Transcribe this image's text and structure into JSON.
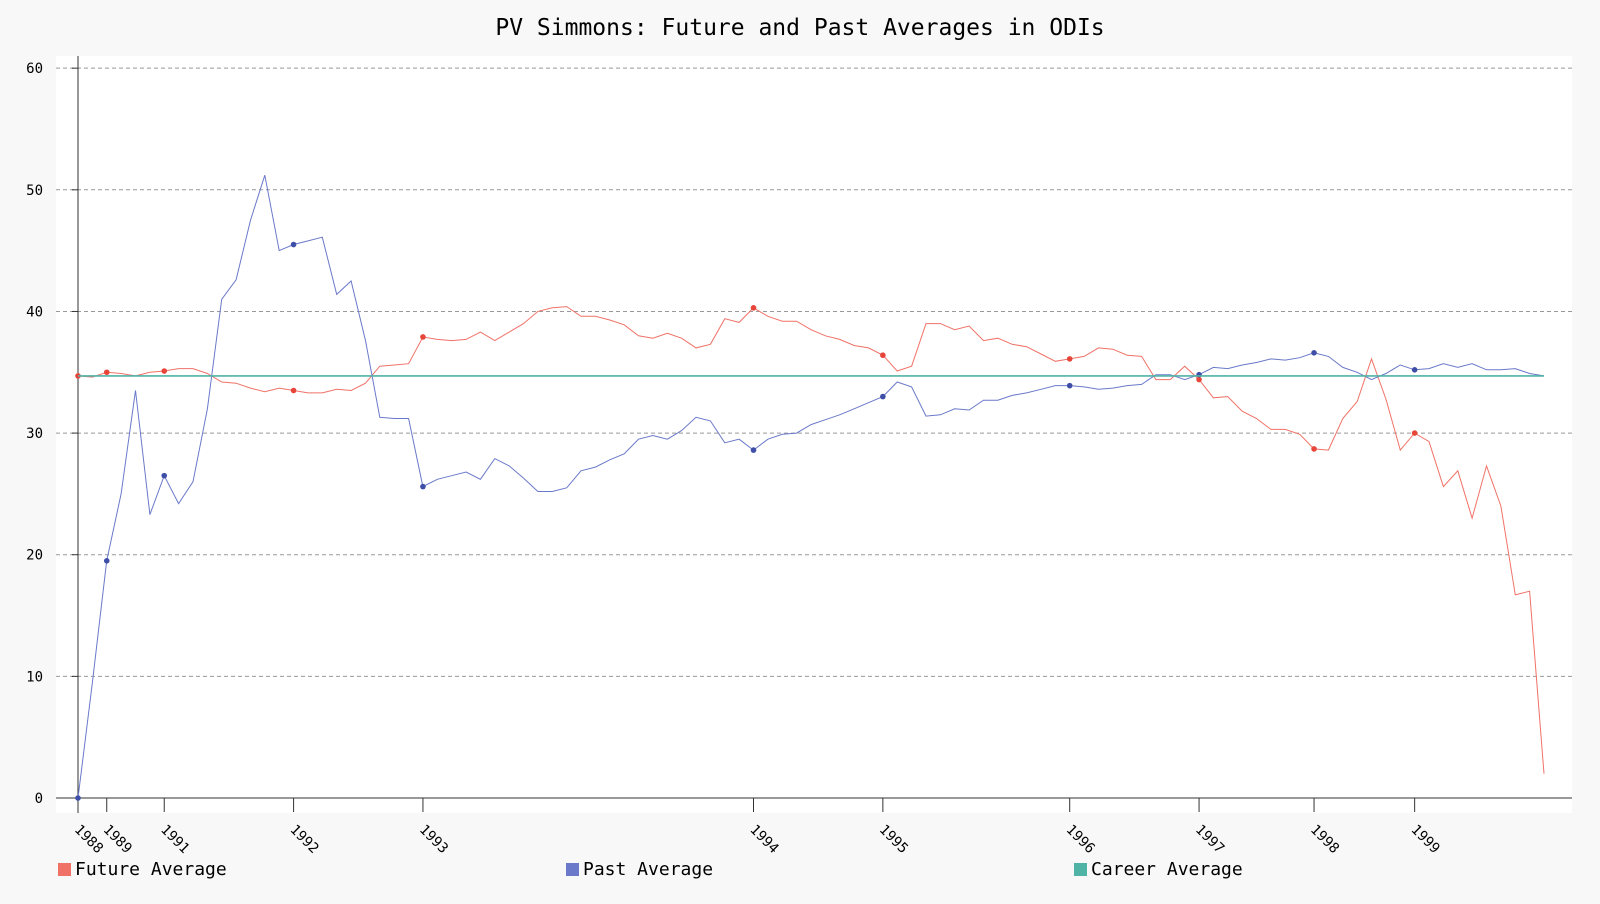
{
  "chart_data": {
    "type": "line",
    "title": "PV Simmons: Future and Past Averages in ODIs",
    "xlabel": "",
    "ylabel": "",
    "ylim": [
      0,
      61
    ],
    "yticks": [
      0,
      10,
      20,
      30,
      40,
      50,
      60
    ],
    "grid": true,
    "legend_position": "bottom",
    "x_count": 103,
    "x_tick_labels": [
      {
        "index": 0,
        "label": "1988"
      },
      {
        "index": 2,
        "label": "1989"
      },
      {
        "index": 6,
        "label": "1991"
      },
      {
        "index": 15,
        "label": "1992"
      },
      {
        "index": 24,
        "label": "1993"
      },
      {
        "index": 47,
        "label": "1994"
      },
      {
        "index": 56,
        "label": "1995"
      },
      {
        "index": 69,
        "label": "1996"
      },
      {
        "index": 78,
        "label": "1997"
      },
      {
        "index": 86,
        "label": "1998"
      },
      {
        "index": 93,
        "label": "1999"
      }
    ],
    "series": [
      {
        "name": "Future Average",
        "color": "#f07267",
        "values": [
          34.7,
          34.6,
          35.0,
          34.9,
          34.7,
          35.0,
          35.1,
          35.3,
          35.3,
          34.9,
          34.2,
          34.1,
          33.7,
          33.4,
          33.7,
          33.5,
          33.3,
          33.3,
          33.6,
          33.5,
          34.1,
          35.5,
          35.6,
          35.7,
          37.9,
          37.7,
          37.6,
          37.7,
          38.3,
          37.6,
          38.3,
          39.0,
          40.0,
          40.3,
          40.4,
          39.6,
          39.6,
          39.3,
          38.9,
          38.0,
          37.8,
          38.2,
          37.8,
          37.0,
          37.3,
          39.4,
          39.1,
          40.3,
          39.6,
          39.2,
          39.2,
          38.5,
          38.0,
          37.7,
          37.2,
          37.0,
          36.4,
          35.1,
          35.5,
          39.0,
          39.0,
          38.5,
          38.8,
          37.6,
          37.8,
          37.3,
          37.1,
          36.5,
          35.9,
          36.1,
          36.3,
          37.0,
          36.9,
          36.4,
          36.3,
          34.4,
          34.4,
          35.5,
          34.4,
          32.9,
          33.0,
          31.8,
          31.2,
          30.3,
          30.3,
          29.9,
          28.7,
          28.6,
          31.2,
          32.6,
          36.1,
          32.8,
          28.6,
          30.0,
          29.3,
          25.6,
          26.9,
          23.0,
          27.3,
          24.0,
          16.7,
          17.0,
          2.0
        ]
      },
      {
        "name": "Past Average",
        "color": "#6a79c9",
        "values": [
          0.0,
          9.5,
          19.5,
          25.0,
          33.5,
          23.3,
          26.5,
          24.2,
          26.0,
          32.0,
          41.0,
          42.6,
          47.5,
          51.2,
          45.0,
          45.5,
          45.8,
          46.1,
          41.4,
          42.5,
          37.6,
          31.3,
          31.2,
          31.2,
          25.6,
          26.2,
          26.5,
          26.8,
          26.2,
          27.9,
          27.3,
          26.3,
          25.2,
          25.2,
          25.5,
          26.9,
          27.2,
          27.8,
          28.3,
          29.5,
          29.8,
          29.5,
          30.2,
          31.3,
          31.0,
          29.2,
          29.5,
          28.6,
          29.5,
          29.9,
          30.0,
          30.7,
          31.1,
          31.5,
          32.0,
          32.5,
          33.0,
          34.2,
          33.8,
          31.4,
          31.5,
          32.0,
          31.9,
          32.7,
          32.7,
          33.1,
          33.3,
          33.6,
          33.9,
          33.9,
          33.8,
          33.6,
          33.7,
          33.9,
          34.0,
          34.8,
          34.8,
          34.4,
          34.8,
          35.4,
          35.3,
          35.6,
          35.8,
          36.1,
          36.0,
          36.2,
          36.6,
          36.3,
          35.4,
          35.0,
          34.4,
          34.9,
          35.6,
          35.2,
          35.3,
          35.7,
          35.4,
          35.7,
          35.2,
          35.2,
          35.3,
          34.9,
          34.7
        ]
      },
      {
        "name": "Career Average",
        "color": "#4fb3a6",
        "values": [
          34.7,
          34.7
        ]
      }
    ]
  }
}
